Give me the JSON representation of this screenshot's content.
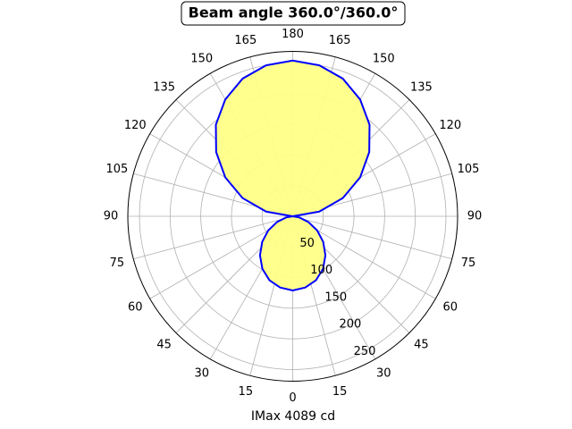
{
  "chart_data": {
    "type": "polar",
    "title": "Beam angle 360.0°/360.0°",
    "xlabel": "IMax 4089 cd",
    "x": [
      0,
      10,
      20,
      30,
      40,
      50,
      60,
      70,
      80,
      90,
      100,
      110,
      120,
      130,
      140,
      150,
      160,
      170,
      180,
      190,
      200,
      210,
      220,
      230,
      240,
      250,
      260,
      270,
      280,
      290,
      300,
      310,
      320,
      330,
      340,
      350,
      360
    ],
    "series": [
      {
        "color": "#0000ff",
        "fill": "#ffff88",
        "values": [
          121,
          118,
          111,
          99,
          83,
          65,
          46,
          27,
          11,
          0,
          44,
          87,
          127,
          163,
          195,
          220,
          239,
          250,
          254,
          250,
          239,
          220,
          195,
          163,
          127,
          87,
          44,
          0,
          11,
          27,
          46,
          65,
          83,
          99,
          111,
          118,
          121
        ]
      }
    ],
    "ylim": [
      0,
      269
    ],
    "yticks": [
      50,
      100,
      150,
      200,
      250
    ],
    "xticks": [
      0,
      15,
      30,
      45,
      60,
      75,
      90,
      105,
      120,
      135,
      150,
      165,
      180,
      {
        "value": 195,
        "label": "165"
      },
      {
        "value": 210,
        "label": "150"
      },
      {
        "value": 225,
        "label": "135"
      },
      {
        "value": 240,
        "label": "120"
      },
      {
        "value": 255,
        "label": "105"
      },
      {
        "value": 270,
        "label": "90"
      },
      {
        "value": 285,
        "label": "75"
      },
      {
        "value": 300,
        "label": "60"
      },
      {
        "value": 315,
        "label": "45"
      },
      {
        "value": 330,
        "label": "30"
      },
      {
        "value": 345,
        "label": "15"
      }
    ],
    "grid": true
  }
}
